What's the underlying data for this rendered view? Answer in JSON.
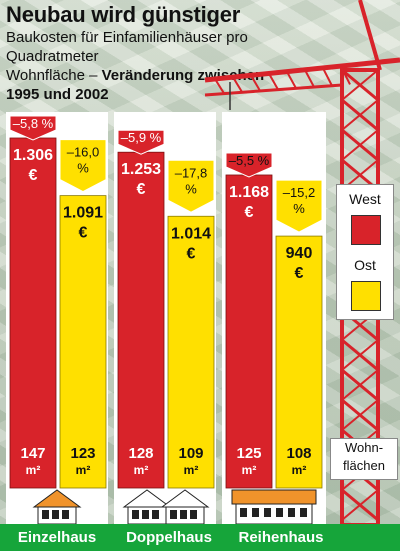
{
  "header": {
    "title": "Neubau wird günstiger",
    "subtitle_line1": "Baukosten für Einfamilienhäuser pro Quadratmeter",
    "subtitle_line2a": "Wohnfläche – ",
    "subtitle_line2b": "Veränderung zwischen",
    "subtitle_line3": "1995 und 2002"
  },
  "legend": {
    "west": "West",
    "ost": "Ost",
    "wohn_line1": "Wohn-",
    "wohn_line2": "flächen"
  },
  "colors": {
    "west": "#d8232a",
    "ost": "#ffe000",
    "crane": "#d8232a",
    "green": "#16a53a"
  },
  "chart_data": {
    "type": "bar",
    "title": "Neubau wird günstiger",
    "categories": [
      "Einzelhaus",
      "Doppelhaus",
      "Reihenhaus"
    ],
    "series": [
      {
        "name": "West",
        "values": [
          1306,
          1253,
          1168
        ],
        "labels": [
          "1.306",
          "1.253",
          "1.168"
        ],
        "changes": [
          "–5,8 %",
          "–5,9 %",
          "–5,5 %"
        ],
        "areas": [
          "147",
          "128",
          "125"
        ]
      },
      {
        "name": "Ost",
        "values": [
          1091,
          1014,
          940
        ],
        "labels": [
          "1.091",
          "1.014",
          "940"
        ],
        "changes": [
          "–16,0 %",
          "–17,8 %",
          "–15,2 %"
        ],
        "areas": [
          "123",
          "109",
          "108"
        ]
      }
    ],
    "currency": "€",
    "area_unit": "m²",
    "ylim": [
      0,
      1306
    ]
  }
}
